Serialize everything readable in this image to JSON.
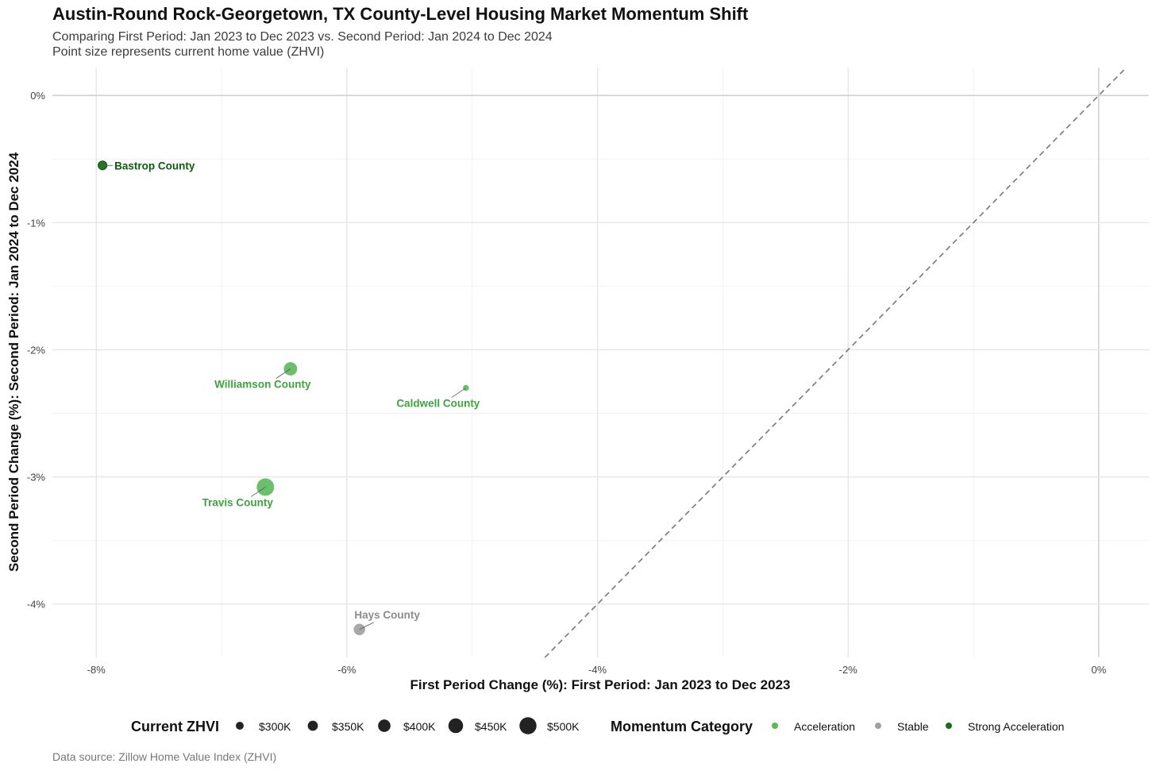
{
  "title": "Austin-Round Rock-Georgetown, TX County-Level Housing Market Momentum Shift",
  "subtitle_line1": "Comparing First Period: Jan 2023 to Dec 2023 vs. Second Period: Jan 2024 to Dec 2024",
  "subtitle_line2": "Point size represents current home value (ZHVI)",
  "caption": "Data source: Zillow Home Value Index (ZHVI)",
  "chart_data": {
    "type": "scatter",
    "xlabel": "First Period Change (%): First Period: Jan 2023 to Dec 2023",
    "ylabel": "Second Period Change (%): Second Period: Jan 2024 to Dec 2024",
    "xlim": [
      -8.35,
      0.4
    ],
    "ylim": [
      -4.42,
      0.22
    ],
    "x_ticks": [
      -8,
      -6,
      -4,
      -2,
      0
    ],
    "x_tick_labels": [
      "-8%",
      "-6%",
      "-4%",
      "-2%",
      "0%"
    ],
    "y_ticks": [
      0,
      -1,
      -2,
      -3,
      -4
    ],
    "y_tick_labels": [
      "0%",
      "-1%",
      "-2%",
      "-3%",
      "-4%"
    ],
    "grid": true,
    "reference_line": "y = x (dashed)",
    "colors": {
      "Acceleration": "#5cb85c",
      "Stable": "#a0a0a0",
      "Strong Acceleration": "#1a6e1a"
    },
    "label_colors": {
      "Acceleration": "#3fa33f",
      "Stable": "#8c8c8c",
      "Strong Acceleration": "#0e5c0e"
    },
    "points": [
      {
        "name": "Bastrop County",
        "x": -7.95,
        "y": -0.55,
        "zhvi": 320000,
        "category": "Strong Acceleration",
        "label_pos": "right"
      },
      {
        "name": "Williamson County",
        "x": -6.45,
        "y": -2.15,
        "zhvi": 420000,
        "category": "Acceleration",
        "label_pos": "below-left"
      },
      {
        "name": "Caldwell County",
        "x": -5.05,
        "y": -2.3,
        "zhvi": 260000,
        "category": "Acceleration",
        "label_pos": "below-left"
      },
      {
        "name": "Travis County",
        "x": -6.65,
        "y": -3.08,
        "zhvi": 510000,
        "category": "Acceleration",
        "label_pos": "below-left"
      },
      {
        "name": "Hays County",
        "x": -5.9,
        "y": -4.2,
        "zhvi": 380000,
        "category": "Stable",
        "label_pos": "above-right"
      }
    ],
    "size_legend": {
      "title": "Current ZHVI",
      "items": [
        {
          "label": "$300K",
          "value": 300000
        },
        {
          "label": "$350K",
          "value": 350000
        },
        {
          "label": "$400K",
          "value": 400000
        },
        {
          "label": "$450K",
          "value": 450000
        },
        {
          "label": "$500K",
          "value": 500000
        }
      ]
    },
    "color_legend": {
      "title": "Momentum Category",
      "items": [
        "Acceleration",
        "Stable",
        "Strong Acceleration"
      ]
    }
  }
}
